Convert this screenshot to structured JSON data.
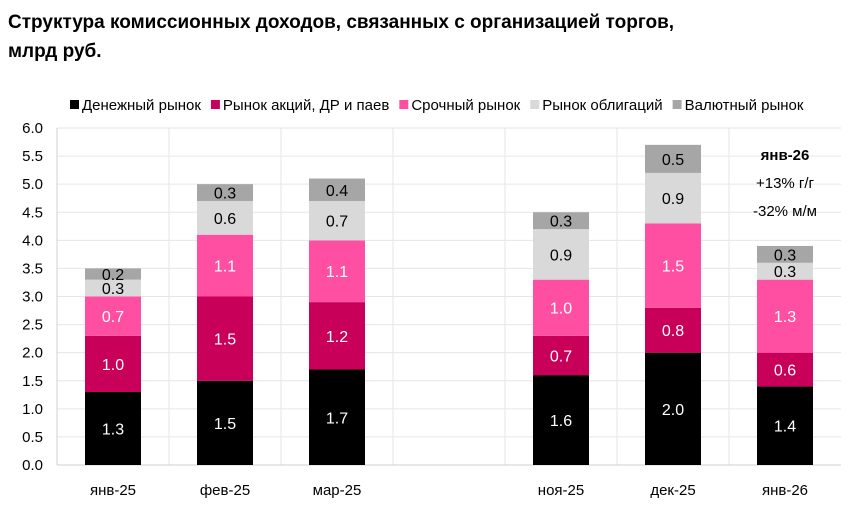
{
  "chart_data": {
    "type": "bar",
    "stacked": true,
    "title": "Структура комиссионных доходов, связанных с организацией торгов, млрд руб.",
    "categories": [
      "янв-25",
      "фев-25",
      "мар-25",
      "",
      "ноя-25",
      "дек-25",
      "янв-26"
    ],
    "series": [
      {
        "name": "Денежный рынок",
        "color": "#000000",
        "label_color": "#ffffff",
        "values": [
          1.3,
          1.5,
          1.7,
          null,
          1.6,
          2.0,
          1.4
        ]
      },
      {
        "name": "Рынок акций, ДР и паев",
        "color": "#c8005a",
        "label_color": "#ffffff",
        "values": [
          1.0,
          1.5,
          1.2,
          null,
          0.7,
          0.8,
          0.6
        ]
      },
      {
        "name": "Срочный рынок",
        "color": "#ff4fa3",
        "label_color": "#ffffff",
        "values": [
          0.7,
          1.1,
          1.1,
          null,
          1.0,
          1.5,
          1.3
        ]
      },
      {
        "name": "Рынок облигаций",
        "color": "#d9d9d9",
        "label_color": "#000000",
        "values": [
          0.3,
          0.6,
          0.7,
          null,
          0.9,
          0.9,
          0.3
        ]
      },
      {
        "name": "Валютный рынок",
        "color": "#a6a6a6",
        "label_color": "#000000",
        "values": [
          0.2,
          0.3,
          0.4,
          null,
          0.3,
          0.5,
          0.3
        ]
      }
    ],
    "ylim": [
      0,
      6.0
    ],
    "yticks": [
      "0.0",
      "0.5",
      "1.0",
      "1.5",
      "2.0",
      "2.5",
      "3.0",
      "3.5",
      "4.0",
      "4.5",
      "5.0",
      "5.5",
      "6.0"
    ],
    "grid": true,
    "legend": "top",
    "annotation": {
      "title": "янв-26",
      "lines": [
        "+13% г/г",
        "-32% м/м"
      ]
    }
  }
}
